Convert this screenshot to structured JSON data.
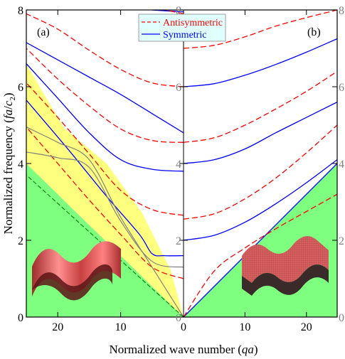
{
  "chart_data": {
    "type": "line",
    "xlabel": "Normalized wave number (qa)",
    "ylabel": "Normalized frequency (fa/c₂)",
    "panels": [
      {
        "label": "(a)",
        "xlim": [
          25,
          0
        ],
        "ylim": [
          0,
          8
        ],
        "xticks": [
          20,
          10,
          0
        ],
        "yticks": [
          0,
          2,
          4,
          6,
          8
        ]
      },
      {
        "label": "(b)",
        "xlim": [
          0,
          25
        ],
        "ylim": [
          0,
          8
        ],
        "xticks": [
          0,
          10,
          20
        ],
        "yticks": [
          0,
          2,
          4,
          6,
          8
        ]
      }
    ],
    "legend": {
      "position": "top-center",
      "entries": [
        {
          "name": "Antisymmetric",
          "style": "dashed",
          "color": "#ff0000"
        },
        {
          "name": "Symmetric",
          "style": "solid",
          "color": "#0000ff"
        }
      ]
    },
    "colors": {
      "antisymmetric": "#ff0000",
      "symmetric": "#0000ff",
      "sound_cone": "#7fff7f",
      "band_region": "#ffff7f",
      "gray_curve": "#808080",
      "bound_line": "#008000"
    },
    "series_b": [
      {
        "type": "symmetric",
        "points": [
          [
            0,
            0
          ],
          [
            25,
            4.0
          ]
        ]
      },
      {
        "type": "antisymmetric",
        "points": [
          [
            0,
            0
          ],
          [
            5,
            1.2
          ],
          [
            10,
            1.8
          ],
          [
            15,
            2.3
          ],
          [
            20,
            2.75
          ],
          [
            25,
            3.2
          ]
        ]
      },
      {
        "type": "symmetric",
        "points": [
          [
            0,
            2.0
          ],
          [
            5,
            2.13
          ],
          [
            10,
            2.47
          ],
          [
            15,
            2.95
          ],
          [
            20,
            3.5
          ],
          [
            25,
            4.1
          ]
        ]
      },
      {
        "type": "antisymmetric",
        "points": [
          [
            0,
            2.55
          ],
          [
            5,
            2.69
          ],
          [
            10,
            3.08
          ],
          [
            15,
            3.62
          ],
          [
            20,
            4.28
          ],
          [
            25,
            5.0
          ]
        ]
      },
      {
        "type": "symmetric",
        "points": [
          [
            0,
            4.0
          ],
          [
            5,
            4.1
          ],
          [
            10,
            4.38
          ],
          [
            15,
            4.8
          ],
          [
            20,
            5.2
          ],
          [
            25,
            5.6
          ]
        ]
      },
      {
        "type": "antisymmetric",
        "points": [
          [
            0,
            4.55
          ],
          [
            5,
            4.67
          ],
          [
            10,
            5.0
          ],
          [
            15,
            5.42
          ],
          [
            20,
            5.88
          ],
          [
            25,
            6.4
          ]
        ]
      },
      {
        "type": "symmetric",
        "points": [
          [
            0,
            6.0
          ],
          [
            5,
            6.08
          ],
          [
            10,
            6.3
          ],
          [
            15,
            6.58
          ],
          [
            20,
            6.9
          ],
          [
            25,
            7.25
          ]
        ]
      },
      {
        "type": "antisymmetric",
        "points": [
          [
            0,
            7.0
          ],
          [
            5,
            7.08
          ],
          [
            10,
            7.3
          ],
          [
            15,
            7.58
          ],
          [
            20,
            7.8
          ],
          [
            25,
            8.0
          ]
        ]
      }
    ],
    "series_a": [
      {
        "type": "antisymmetric",
        "points": [
          [
            0,
            1.0
          ],
          [
            5,
            1.3
          ],
          [
            10,
            2.15
          ],
          [
            15,
            3.05
          ],
          [
            20,
            4.0
          ],
          [
            25,
            4.95
          ]
        ]
      },
      {
        "type": "symmetric",
        "points": [
          [
            0,
            1.6
          ],
          [
            3,
            1.6
          ],
          [
            5,
            1.65
          ],
          [
            7,
            2.15
          ],
          [
            12,
            3.1
          ],
          [
            18,
            4.3
          ],
          [
            25,
            5.65
          ]
        ]
      },
      {
        "type": "antisymmetric",
        "points": [
          [
            0,
            2.65
          ],
          [
            5,
            2.8
          ],
          [
            10,
            3.3
          ],
          [
            15,
            4.25
          ],
          [
            20,
            5.2
          ],
          [
            25,
            6.1
          ]
        ]
      },
      {
        "type": "symmetric",
        "points": [
          [
            0,
            3.8
          ],
          [
            5,
            3.85
          ],
          [
            10,
            4.1
          ],
          [
            15,
            4.8
          ],
          [
            20,
            5.7
          ],
          [
            25,
            6.6
          ]
        ]
      },
      {
        "type": "antisymmetric",
        "points": [
          [
            0,
            4.55
          ],
          [
            5,
            4.6
          ],
          [
            10,
            4.9
          ],
          [
            15,
            5.5
          ],
          [
            20,
            6.2
          ],
          [
            25,
            7.0
          ]
        ]
      },
      {
        "type": "symmetric",
        "points": [
          [
            0,
            4.8
          ],
          [
            5,
            5.3
          ],
          [
            10,
            5.8
          ],
          [
            15,
            6.25
          ],
          [
            20,
            6.7
          ],
          [
            25,
            7.15
          ]
        ]
      },
      {
        "type": "antisymmetric",
        "points": [
          [
            0,
            6.0
          ],
          [
            5,
            6.1
          ],
          [
            10,
            6.45
          ],
          [
            15,
            6.95
          ],
          [
            20,
            7.5
          ],
          [
            25,
            7.9
          ]
        ]
      },
      {
        "type": "symmetric",
        "points": [
          [
            0,
            7.95
          ],
          [
            5,
            8.0
          ],
          [
            7,
            8.05
          ]
        ]
      },
      {
        "type": "antisymmetric",
        "points": [
          [
            0,
            7.9
          ],
          [
            3,
            8.0
          ],
          [
            5,
            8.05
          ]
        ]
      },
      {
        "type": "gray",
        "points": [
          [
            0,
            0
          ],
          [
            5,
            1.3
          ],
          [
            10,
            2.6
          ],
          [
            15,
            4.1
          ],
          [
            20,
            4.55
          ],
          [
            25,
            4.95
          ]
        ]
      },
      {
        "type": "gray",
        "points": [
          [
            0,
            1.3
          ],
          [
            5,
            1.45
          ],
          [
            10,
            2.5
          ],
          [
            15,
            3.9
          ],
          [
            20,
            4.15
          ],
          [
            25,
            4.3
          ]
        ]
      },
      {
        "type": "bound",
        "points": [
          [
            0,
            0
          ],
          [
            25,
            3.7
          ]
        ]
      }
    ]
  }
}
